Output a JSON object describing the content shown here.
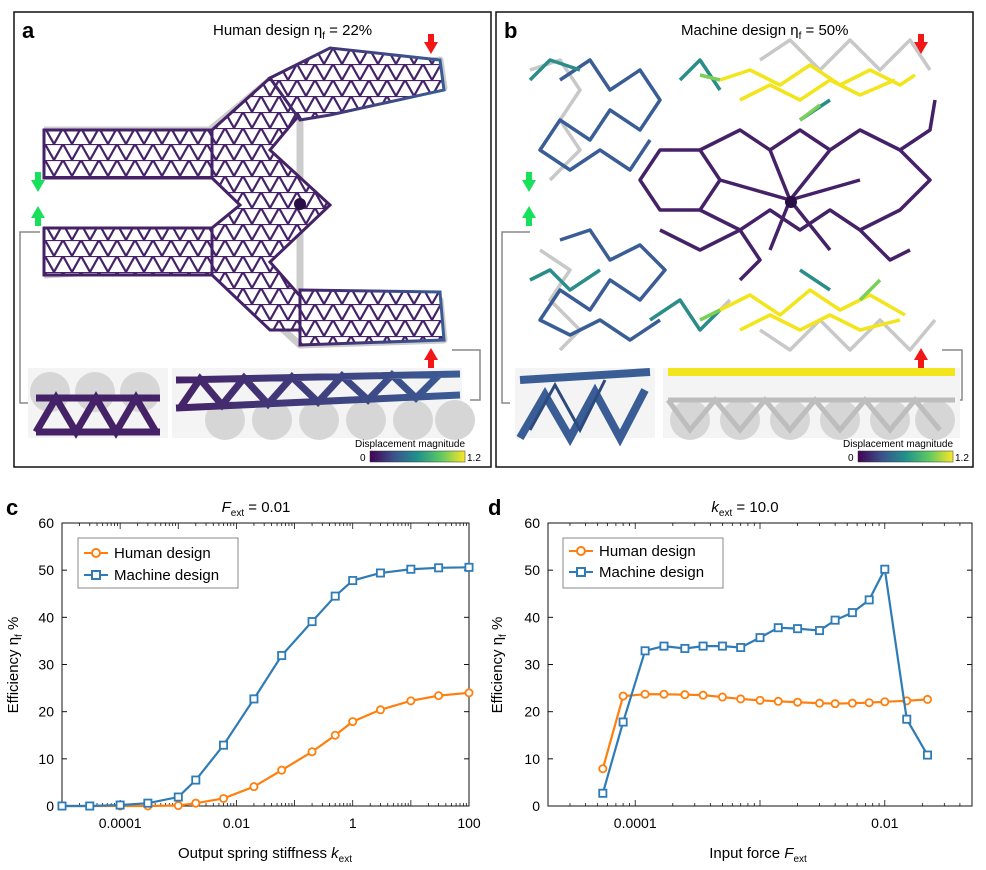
{
  "panel_a": {
    "label": "a",
    "title_prefix": "Human design η",
    "title_sub": "f",
    "title_suffix": " = 22%",
    "colorbar": {
      "title": "Displacement magnitude",
      "min": "0",
      "max": "1.2"
    }
  },
  "panel_b": {
    "label": "b",
    "title_prefix": "Machine design η",
    "title_sub": "f",
    "title_suffix": " = 50%",
    "colorbar": {
      "title": "Displacement magnitude",
      "min": "0",
      "max": "1.2"
    }
  },
  "colors": {
    "human": "#ff7f0e",
    "machine": "#2f7bb6",
    "lattice_dark": "#452267",
    "lattice_mid": "#3a5d96",
    "lattice_teal": "#2b8d8a",
    "lattice_yellow": "#f2e51c",
    "ghost": "#c8c8c8",
    "arrow_in": "#18e05a",
    "arrow_out": "#f21616"
  },
  "chart_data": [
    {
      "panel": "c",
      "type": "line",
      "title_main": "F",
      "title_sub": "ext",
      "title_rest": " = 0.01",
      "xscale": "log",
      "xlabel_main": "Output spring stiffness ",
      "xlabel_var": "k",
      "xlabel_sub": "ext",
      "ylabel_main": "Efficiency η",
      "ylabel_sub": "f",
      "ylabel_rest": " %",
      "xlim": [
        1e-05,
        100
      ],
      "ylim": [
        0,
        60
      ],
      "xticks": [
        0.0001,
        0.01,
        1,
        100
      ],
      "xtick_labels": [
        "0.0001",
        "0.01",
        "1",
        "100"
      ],
      "yticks": [
        0,
        10,
        20,
        30,
        40,
        50,
        60
      ],
      "legend_position": "top-left",
      "series": [
        {
          "name": "Human design",
          "marker": "circle",
          "x": [
            1e-05,
            3e-05,
            0.0001,
            0.0003,
            0.001,
            0.002,
            0.006,
            0.02,
            0.06,
            0.2,
            0.5,
            1,
            3,
            10,
            30,
            100
          ],
          "y": [
            0,
            0,
            0,
            0,
            0.1,
            0.6,
            1.6,
            4.1,
            7.6,
            11.5,
            15,
            17.9,
            20.4,
            22.3,
            23.4,
            24
          ]
        },
        {
          "name": "Machine design",
          "marker": "square",
          "x": [
            1e-05,
            3e-05,
            0.0001,
            0.0003,
            0.001,
            0.002,
            0.006,
            0.02,
            0.06,
            0.2,
            0.5,
            1,
            3,
            10,
            30,
            100
          ],
          "y": [
            0,
            0,
            0.2,
            0.6,
            1.9,
            5.5,
            12.9,
            22.7,
            31.9,
            39.1,
            44.5,
            47.8,
            49.4,
            50.2,
            50.5,
            50.6
          ]
        }
      ]
    },
    {
      "panel": "d",
      "type": "line",
      "title_main": "k",
      "title_sub": "ext",
      "title_rest": " = 10.0",
      "xscale": "log",
      "xlabel_main": "Input force ",
      "xlabel_var": "F",
      "xlabel_sub": "ext",
      "ylabel_main": "Efficiency η",
      "ylabel_sub": "f",
      "ylabel_rest": " %",
      "xlim": [
        2e-05,
        0.05
      ],
      "ylim": [
        0,
        60
      ],
      "xticks": [
        0.0001,
        0.01
      ],
      "xtick_labels": [
        "0.0001",
        "0.01"
      ],
      "yticks": [
        0,
        10,
        20,
        30,
        40,
        50,
        60
      ],
      "legend_position": "top-left",
      "series": [
        {
          "name": "Human design",
          "marker": "circle",
          "x": [
            5.5e-05,
            8e-05,
            0.00012,
            0.00017,
            0.00025,
            0.00035,
            0.0005,
            0.0007,
            0.001,
            0.0014,
            0.002,
            0.003,
            0.004,
            0.0055,
            0.0075,
            0.01,
            0.015,
            0.022
          ],
          "y": [
            7.9,
            23.3,
            23.7,
            23.7,
            23.6,
            23.5,
            23.1,
            22.7,
            22.4,
            22.2,
            22,
            21.8,
            21.7,
            21.8,
            21.9,
            22.1,
            22.3,
            22.6
          ]
        },
        {
          "name": "Machine design",
          "marker": "square",
          "x": [
            5.5e-05,
            8e-05,
            0.00012,
            0.00017,
            0.00025,
            0.00035,
            0.0005,
            0.0007,
            0.001,
            0.0014,
            0.002,
            0.003,
            0.004,
            0.0055,
            0.0075,
            0.01,
            0.015,
            0.022
          ],
          "y": [
            2.7,
            17.8,
            32.9,
            33.9,
            33.4,
            33.9,
            33.9,
            33.6,
            35.7,
            37.8,
            37.6,
            37.2,
            39.4,
            41,
            43.7,
            50.2,
            18.4,
            10.8
          ]
        }
      ]
    }
  ]
}
